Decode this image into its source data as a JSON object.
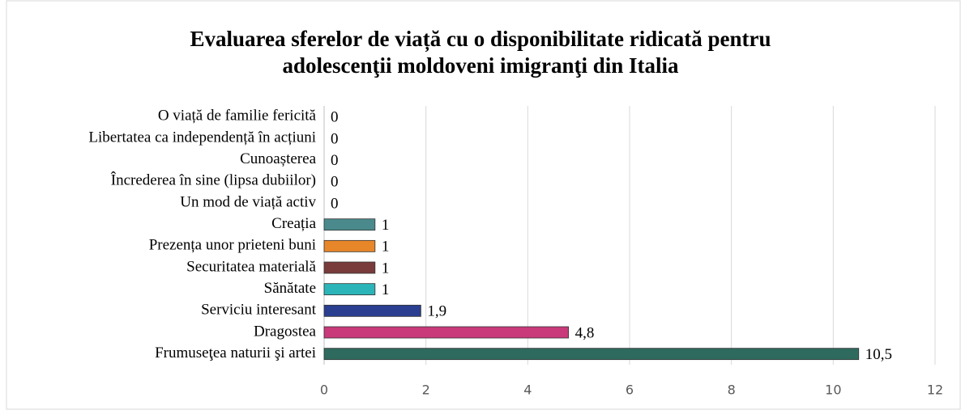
{
  "chart_data": {
    "type": "hbar",
    "title": "Evaluarea sferelor de viață cu o disponibilitate ridicată pentru adolescenţii moldoveni imigranţi din Italia",
    "categories": [
      "O viață de familie fericită",
      "Libertatea ca independență în acțiuni",
      "Cunoașterea",
      "Încrederea în sine (lipsa dubiilor)",
      "Un mod de viață activ",
      "Creația ",
      "Prezența unor prieteni buni",
      "Securitatea materială",
      "Sănătate",
      "Serviciu interesant",
      "Dragostea",
      "Frumuseţea naturii şi artei"
    ],
    "values": [
      0,
      0,
      0,
      0,
      0,
      1,
      1,
      1,
      1,
      1.9,
      4.8,
      10.5
    ],
    "value_labels": [
      "0",
      "0",
      "0",
      "0",
      "0",
      "1",
      "1",
      "1",
      "1",
      "1,9",
      "4,8",
      "10,5"
    ],
    "colors": [
      "#4a8a8c",
      "#4a8a8c",
      "#4a8a8c",
      "#4a8a8c",
      "#4a8a8c",
      "#4a8a8c",
      "#e8862a",
      "#7a3b3b",
      "#2bb5b8",
      "#2a3f8f",
      "#c83a7a",
      "#2e6b5e"
    ],
    "xlim": [
      0,
      12
    ],
    "xticks": [
      0,
      2,
      4,
      6,
      8,
      10,
      12
    ],
    "grid": true
  }
}
